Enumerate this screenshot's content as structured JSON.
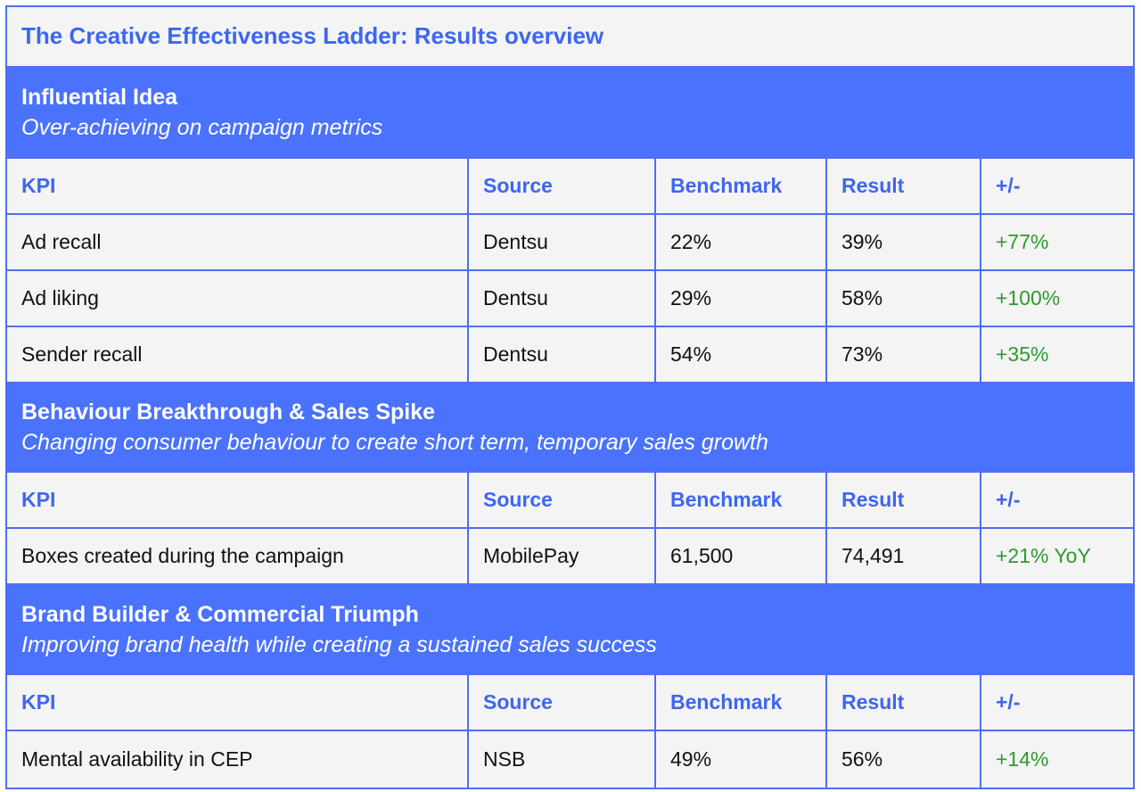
{
  "title": "The Creative Effectiveness Ladder: Results overview",
  "colors": {
    "accent_text": "#3d66f2",
    "section_band": "#4a72fd",
    "border": "#4f6ff0",
    "positive": "#2e9a2e",
    "background": "#f4f4f4"
  },
  "headers": {
    "kpi": "KPI",
    "source": "Source",
    "benchmark": "Benchmark",
    "result": "Result",
    "delta": "+/-"
  },
  "sections": [
    {
      "name": "Influential Idea",
      "description": "Over-achieving on campaign metrics",
      "rows": [
        {
          "kpi": "Ad recall",
          "source": "Dentsu",
          "benchmark": "22%",
          "result": "39%",
          "delta": "+77%"
        },
        {
          "kpi": "Ad liking",
          "source": "Dentsu",
          "benchmark": "29%",
          "result": "58%",
          "delta": "+100%"
        },
        {
          "kpi": "Sender recall",
          "source": "Dentsu",
          "benchmark": "54%",
          "result": "73%",
          "delta": "+35%"
        }
      ]
    },
    {
      "name": "Behaviour Breakthrough & Sales Spike",
      "description": "Changing consumer behaviour to create short term, temporary sales growth",
      "rows": [
        {
          "kpi": "Boxes created during the campaign",
          "source": "MobilePay",
          "benchmark": "61,500",
          "result": "74,491",
          "delta": "+21% YoY"
        }
      ]
    },
    {
      "name": "Brand Builder & Commercial Triumph",
      "description": "Improving brand health while creating a sustained sales success",
      "rows": [
        {
          "kpi": "Mental availability in CEP",
          "source": "NSB",
          "benchmark": "49%",
          "result": "56%",
          "delta": "+14%"
        }
      ]
    }
  ]
}
